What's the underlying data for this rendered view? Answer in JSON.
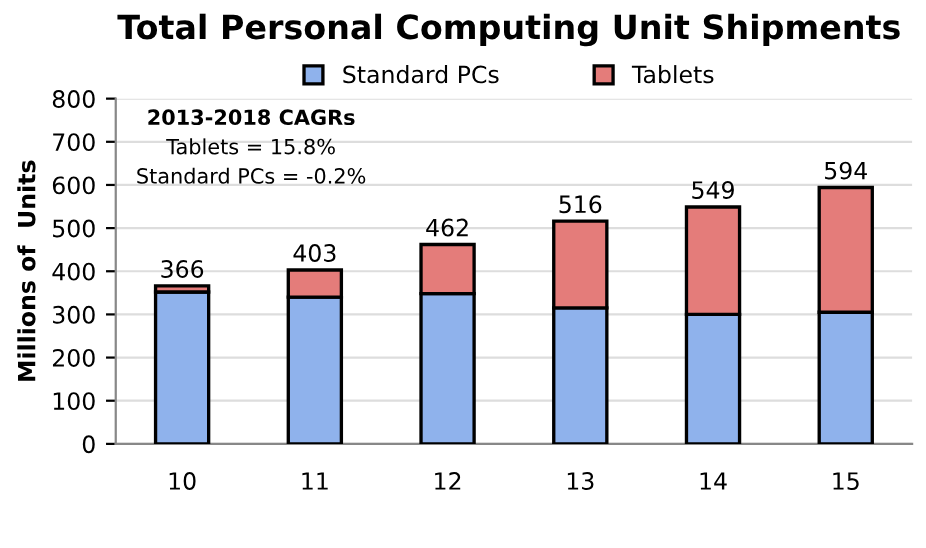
{
  "chart_data": {
    "type": "bar",
    "stacked": true,
    "title": "Total Personal Computing Unit Shipments",
    "ylabel": "Millions of  Units",
    "categories": [
      "10",
      "11",
      "12",
      "13",
      "14",
      "15"
    ],
    "series": [
      {
        "name": "Standard PCs",
        "color": "#8fb2ec",
        "values": [
          352,
          340,
          348,
          315,
          300,
          305
        ]
      },
      {
        "name": "Tablets",
        "color": "#e47c7a",
        "values": [
          14,
          63,
          114,
          201,
          249,
          289
        ]
      }
    ],
    "totals": [
      "366",
      "403",
      "462",
      "516",
      "549",
      "594"
    ],
    "ylim": [
      0,
      800
    ],
    "yticks": [
      0,
      100,
      200,
      300,
      400,
      500,
      600,
      700,
      800
    ],
    "grid": "y",
    "legend": "top",
    "annotations": [
      "2013-2018 CAGRs",
      "Tablets = 15.8%",
      "Standard PCs = -0.2%"
    ]
  }
}
